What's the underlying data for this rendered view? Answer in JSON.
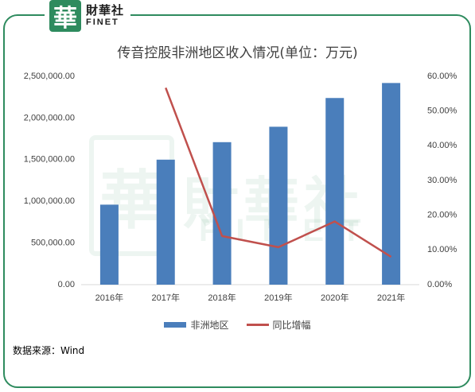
{
  "header": {
    "logo_mark": "華",
    "logo_cn": "財華社",
    "logo_en": "FINET"
  },
  "watermark": {
    "seal": "華",
    "cn": "財華社",
    "en": "FINET"
  },
  "colors": {
    "frame": "#2e8b5e",
    "bar": "#4a7ebb",
    "line": "#c0504d"
  },
  "legend": {
    "bar_label": "非洲地区",
    "line_label": "同比增幅"
  },
  "source": "数据来源：Wind",
  "chart_data": {
    "type": "bar",
    "title": "传音控股非洲地区收入情况(单位：万元)",
    "categories": [
      "2016年",
      "2017年",
      "2018年",
      "2019年",
      "2020年",
      "2021年"
    ],
    "series": [
      {
        "name": "非洲地区",
        "type": "bar",
        "axis": "left",
        "values": [
          960000,
          1500000,
          1710000,
          1895000,
          2240000,
          2420000
        ]
      },
      {
        "name": "同比增幅",
        "type": "line",
        "axis": "right",
        "values": [
          null,
          0.567,
          0.14,
          0.108,
          0.182,
          0.08
        ]
      }
    ],
    "y_left": {
      "ylim": [
        0,
        2500000
      ],
      "ticks": [
        0,
        500000,
        1000000,
        1500000,
        2000000,
        2500000
      ],
      "tick_labels": [
        "0.00",
        "500,000.00",
        "1,000,000.00",
        "1,500,000.00",
        "2,000,000.00",
        "2,500,000.00"
      ]
    },
    "y_right": {
      "ylim": [
        0,
        0.6
      ],
      "ticks": [
        0,
        0.1,
        0.2,
        0.3,
        0.4,
        0.5,
        0.6
      ],
      "tick_labels": [
        "0.00%",
        "10.00%",
        "20.00%",
        "30.00%",
        "40.00%",
        "50.00%",
        "60.00%"
      ]
    },
    "grid": false,
    "legend_position": "bottom"
  }
}
